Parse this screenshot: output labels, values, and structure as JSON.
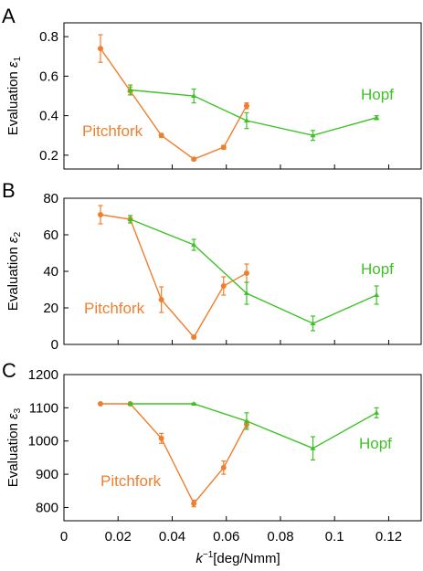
{
  "colors": {
    "pitchfork": "#f07f2d",
    "hopf": "#3ec227",
    "axis": "#000000"
  },
  "chart_data": [
    {
      "type": "line",
      "panel_label": "A",
      "ylabel_prefix": "Evaluation ",
      "ylabel_symbol": "ε",
      "ylabel_sub": "1",
      "ylim": [
        0.13,
        0.87
      ],
      "yticks": [
        0.2,
        0.4,
        0.6,
        0.8
      ],
      "ytick_labels": [
        "0.2",
        "0.4",
        "0.6",
        "0.8"
      ],
      "series": [
        {
          "name": "Pitchfork",
          "x": [
            0.0135,
            0.0245,
            0.036,
            0.048,
            0.059,
            0.0675
          ],
          "y": [
            0.74,
            0.525,
            0.3,
            0.18,
            0.24,
            0.45
          ],
          "err": [
            0.07,
            0.02,
            0.01,
            0.008,
            0.01,
            0.015
          ]
        },
        {
          "name": "Hopf",
          "x": [
            0.0245,
            0.048,
            0.0675,
            0.092,
            0.1155
          ],
          "y": [
            0.53,
            0.5,
            0.375,
            0.3,
            0.39
          ],
          "err": [
            0.025,
            0.035,
            0.04,
            0.025,
            0.01
          ]
        }
      ]
    },
    {
      "type": "line",
      "panel_label": "B",
      "ylabel_prefix": "Evaluation ",
      "ylabel_symbol": "ε",
      "ylabel_sub": "2",
      "ylim": [
        0,
        80
      ],
      "yticks": [
        0,
        20,
        40,
        60,
        80
      ],
      "ytick_labels": [
        "0",
        "20",
        "40",
        "60",
        "80"
      ],
      "series": [
        {
          "name": "Pitchfork",
          "x": [
            0.0135,
            0.0245,
            0.036,
            0.048,
            0.059,
            0.0675
          ],
          "y": [
            71,
            68.5,
            24.5,
            4,
            32,
            39
          ],
          "err": [
            5,
            2,
            7,
            0.8,
            5,
            5
          ]
        },
        {
          "name": "Hopf",
          "x": [
            0.0245,
            0.048,
            0.0675,
            0.092,
            0.1155
          ],
          "y": [
            68.5,
            54.5,
            28,
            11.5,
            27
          ],
          "err": [
            2,
            3,
            6,
            4,
            5
          ]
        }
      ]
    },
    {
      "type": "line",
      "panel_label": "C",
      "ylabel_prefix": "Evaluation ",
      "ylabel_symbol": "ε",
      "ylabel_sub": "3",
      "ylim": [
        760,
        1200
      ],
      "yticks": [
        800,
        900,
        1000,
        1100,
        1200
      ],
      "ytick_labels": [
        "800",
        "900",
        "1000",
        "1100",
        "1200"
      ],
      "xlim": [
        0,
        0.132
      ],
      "xticks": [
        0,
        0.02,
        0.04,
        0.06,
        0.08,
        0.1,
        0.12
      ],
      "xtick_labels": [
        "0",
        "0.02",
        "0.04",
        "0.06",
        "0.08",
        "0.1",
        "0.12"
      ],
      "xlabel_symbol": "k",
      "xlabel_sup": "−1",
      "xlabel_unit": "[deg/Nmm]",
      "series": [
        {
          "name": "Pitchfork",
          "x": [
            0.0135,
            0.0245,
            0.036,
            0.048,
            0.059,
            0.0675
          ],
          "y": [
            1112,
            1112,
            1008,
            812,
            920,
            1050
          ],
          "err": [
            2,
            2,
            15,
            10,
            20,
            10
          ]
        },
        {
          "name": "Hopf",
          "x": [
            0.0245,
            0.048,
            0.0675,
            0.092,
            0.1155
          ],
          "y": [
            1112,
            1112,
            1060,
            978,
            1085
          ],
          "err": [
            2,
            2,
            25,
            35,
            15
          ]
        }
      ]
    }
  ]
}
